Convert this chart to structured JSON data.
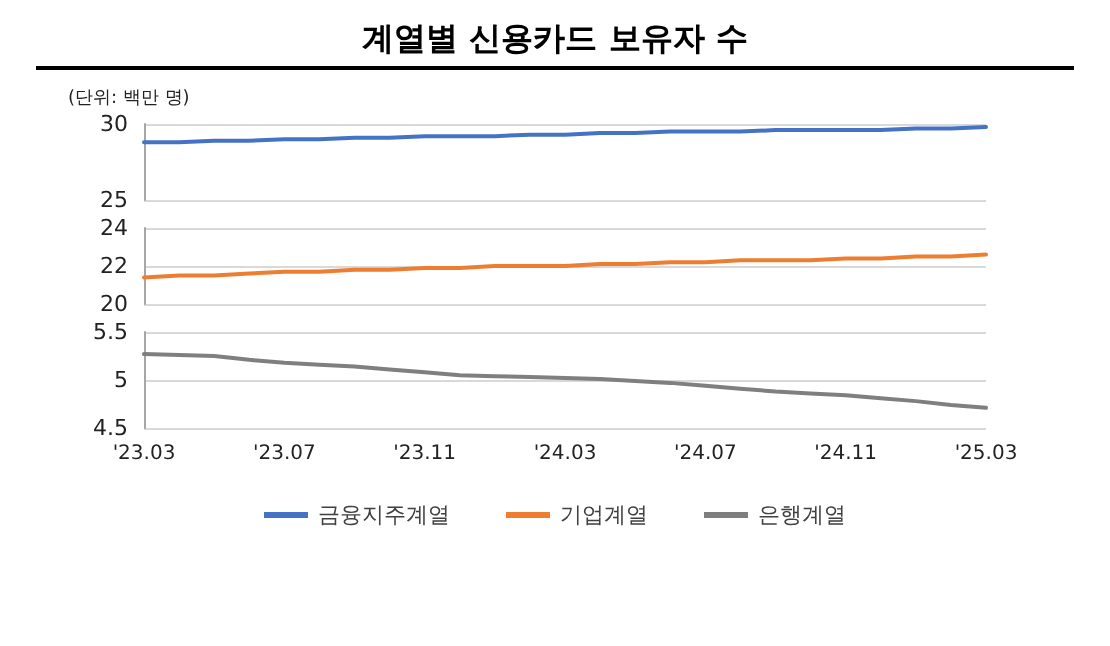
{
  "chart_data": [
    {
      "type": "line",
      "title": "계열별 신용카드 보유자 수",
      "ylabel": "(단위: 백만 명)",
      "series": [
        {
          "name": "금융지주계열",
          "color": "#4472c4",
          "values": [
            28.8,
            28.8,
            28.9,
            28.9,
            29.0,
            29.0,
            29.1,
            29.1,
            29.2,
            29.2,
            29.2,
            29.3,
            29.3,
            29.4,
            29.4,
            29.5,
            29.5,
            29.5,
            29.6,
            29.6,
            29.6,
            29.6,
            29.7,
            29.7,
            29.8
          ]
        }
      ],
      "ylim": [
        25,
        30
      ],
      "yticks": [
        25,
        30
      ],
      "grid": "y",
      "tick_labels": "y",
      "marker": "none"
    },
    {
      "type": "line",
      "series": [
        {
          "name": "기업계열",
          "color": "#ed7d31",
          "values": [
            21.4,
            21.5,
            21.5,
            21.6,
            21.7,
            21.7,
            21.8,
            21.8,
            21.9,
            21.9,
            22.0,
            22.0,
            22.0,
            22.1,
            22.1,
            22.2,
            22.2,
            22.3,
            22.3,
            22.3,
            22.4,
            22.4,
            22.5,
            22.5,
            22.6
          ]
        }
      ],
      "ylim": [
        20,
        24
      ],
      "yticks": [
        20,
        22,
        24
      ],
      "grid": "y",
      "tick_labels": "y",
      "marker": "none"
    },
    {
      "type": "line",
      "categories": [
        "'23.03",
        null,
        null,
        null,
        "'23.07",
        null,
        null,
        null,
        "'23.11",
        null,
        null,
        null,
        "'24.03",
        null,
        null,
        null,
        "'24.07",
        null,
        null,
        null,
        "'24.11",
        null,
        null,
        null,
        "'25.03"
      ],
      "series": [
        {
          "name": "은행계열",
          "color": "#7f7f7f",
          "values": [
            5.27,
            5.26,
            5.25,
            5.21,
            5.18,
            5.16,
            5.14,
            5.11,
            5.08,
            5.05,
            5.04,
            5.03,
            5.02,
            5.01,
            4.99,
            4.97,
            4.94,
            4.91,
            4.88,
            4.86,
            4.84,
            4.81,
            4.78,
            4.74,
            4.71
          ]
        }
      ],
      "ylim": [
        4.5,
        5.5
      ],
      "yticks": [
        4.5,
        5,
        5.5
      ],
      "grid": "y",
      "marker": "none",
      "legend": "bottom"
    }
  ]
}
